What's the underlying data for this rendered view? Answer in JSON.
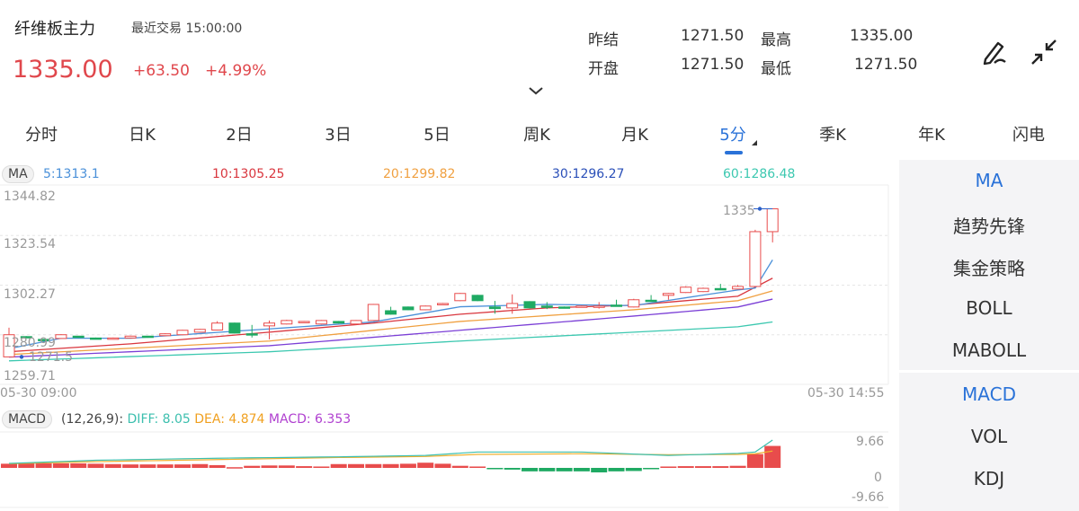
{
  "header": {
    "title": "纤维板主力",
    "last_trade_label": "最近交易",
    "last_trade_time": "15:00:00",
    "price": "1335.00",
    "change": "+63.50",
    "change_pct": "+4.99%"
  },
  "quote": {
    "prev_settle_label": "昨结",
    "prev_settle": "1271.50",
    "high_label": "最高",
    "high": "1335.00",
    "open_label": "开盘",
    "open": "1271.50",
    "low_label": "最低",
    "low": "1271.50"
  },
  "icons": {
    "draw": "pen-draw-icon",
    "collapse": "collapse-arrows-icon",
    "expand": "chevron-down-icon"
  },
  "tabs": [
    {
      "label": "分时"
    },
    {
      "label": "日K"
    },
    {
      "label": "2日"
    },
    {
      "label": "3日"
    },
    {
      "label": "5日"
    },
    {
      "label": "周K"
    },
    {
      "label": "月K"
    },
    {
      "label": "5分",
      "active": true
    },
    {
      "label": "季K"
    },
    {
      "label": "年K"
    },
    {
      "label": "闪电"
    }
  ],
  "indicator_panel": {
    "main": [
      {
        "label": "MA",
        "active": true
      },
      {
        "label": "趋势先锋"
      },
      {
        "label": "集金策略"
      },
      {
        "label": "BOLL"
      },
      {
        "label": "MABOLL"
      }
    ],
    "sub": [
      {
        "label": "MACD",
        "active": true
      },
      {
        "label": "VOL"
      },
      {
        "label": "KDJ"
      }
    ]
  },
  "colors": {
    "up": "#e84c4c",
    "down": "#1faa63",
    "accent": "#2a72d8",
    "ma5": "#4a90d9",
    "ma10": "#d9363e",
    "ma20": "#f0a040",
    "ma30": "#7b3fd6",
    "ma60": "#3cc8b0",
    "diff": "#3cbfae",
    "dea": "#f0b030",
    "macd": "#b040d0"
  },
  "chart_data": [
    {
      "type": "candlestick",
      "indicator_chip": "MA",
      "legend": [
        "5:1313.1",
        "10:1305.25",
        "20:1299.82",
        "30:1296.27",
        "60:1286.48"
      ],
      "y_ticks": [
        "1344.82",
        "1323.54",
        "1302.27",
        "1280.99",
        "1259.71"
      ],
      "ylim": [
        1259.71,
        1344.82
      ],
      "x_labels": [
        "05-30 09:00",
        "05-30 14:55"
      ],
      "high_marker": "1335",
      "low_marker": "1271.5",
      "candles": [
        [
          1271.5,
          1281,
          1284,
          1271.5
        ],
        [
          1280.2,
          1279.8,
          1280.4,
          1279.6
        ],
        [
          1279,
          1278.6,
          1279.2,
          1278.4
        ],
        [
          1279.4,
          1281,
          1281.2,
          1279.2
        ],
        [
          1280.4,
          1279.9,
          1280.5,
          1279.7
        ],
        [
          1279.6,
          1279.3,
          1279.8,
          1279.1
        ],
        [
          1279.4,
          1279.6,
          1279.8,
          1279.2
        ],
        [
          1279.6,
          1280.4,
          1280.6,
          1279.4
        ],
        [
          1280.4,
          1279.9,
          1280.5,
          1279.7
        ],
        [
          1280.6,
          1281.4,
          1281.6,
          1280.4
        ],
        [
          1281,
          1282.9,
          1283.1,
          1280.8
        ],
        [
          1282.1,
          1283.3,
          1283.5,
          1282
        ],
        [
          1283,
          1286,
          1286.8,
          1282.8
        ],
        [
          1286,
          1281.7,
          1286.2,
          1281.5
        ],
        [
          1281.4,
          1281,
          1285.2,
          1279.8
        ],
        [
          1284.8,
          1286,
          1287.1,
          1279
        ],
        [
          1285.6,
          1287.1,
          1287.4,
          1285.4
        ],
        [
          1286.5,
          1286.7,
          1286.9,
          1286.3
        ],
        [
          1285.6,
          1287.1,
          1287.3,
          1285.4
        ],
        [
          1286.7,
          1286,
          1286.9,
          1285.8
        ],
        [
          1285.6,
          1287.1,
          1287.3,
          1285.4
        ],
        [
          1287.1,
          1294,
          1294.2,
          1286.9
        ],
        [
          1291.3,
          1289.8,
          1293,
          1289.6
        ],
        [
          1292.9,
          1291.7,
          1293.1,
          1291.5
        ],
        [
          1291.7,
          1293.3,
          1293.5,
          1291.5
        ],
        [
          1294,
          1294.4,
          1294.6,
          1293.8
        ],
        [
          1295.6,
          1298.7,
          1298.9,
          1295.4
        ],
        [
          1297.9,
          1295.6,
          1298.1,
          1295.4
        ],
        [
          1292.9,
          1292.2,
          1295.5,
          1290
        ],
        [
          1292.5,
          1294.4,
          1298.3,
          1290
        ],
        [
          1295.2,
          1292.5,
          1295.4,
          1292.3
        ],
        [
          1293.3,
          1292.9,
          1295,
          1292
        ],
        [
          1292.9,
          1292.5,
          1293.1,
          1292.3
        ],
        [
          1292.9,
          1293.3,
          1293.5,
          1292.7
        ],
        [
          1293,
          1293.3,
          1295,
          1292.2
        ],
        [
          1293.7,
          1293.3,
          1296,
          1293.1
        ],
        [
          1292.9,
          1296,
          1296.4,
          1292.7
        ],
        [
          1295.8,
          1295.6,
          1298,
          1295.4
        ],
        [
          1297.9,
          1298.7,
          1298.9,
          1296
        ],
        [
          1299.1,
          1301.4,
          1301.8,
          1298.9
        ],
        [
          1299.5,
          1300.9,
          1301.2,
          1299.3
        ],
        [
          1300.8,
          1300.6,
          1302.8,
          1300.2
        ],
        [
          1300.6,
          1301.7,
          1302.4,
          1300.4
        ],
        [
          1301.7,
          1325.2,
          1326,
          1301.5
        ],
        [
          1325.2,
          1335,
          1335,
          1320.6
        ]
      ],
      "ma": {
        "ma5": [
          [
            0,
            1275
          ],
          [
            3,
            1279.5
          ],
          [
            7,
            1279.5
          ],
          [
            12,
            1282
          ],
          [
            21,
            1286.5
          ],
          [
            26,
            1293
          ],
          [
            31,
            1294
          ],
          [
            36,
            1293.5
          ],
          [
            42,
            1300.2
          ],
          [
            43,
            1301
          ],
          [
            44,
            1313.1
          ]
        ],
        "ma10": [
          [
            0,
            1273.7
          ],
          [
            7,
            1277.1
          ],
          [
            15,
            1282.1
          ],
          [
            21,
            1286
          ],
          [
            26,
            1289.8
          ],
          [
            31,
            1292.5
          ],
          [
            36,
            1293.7
          ],
          [
            42,
            1297.5
          ],
          [
            44,
            1305.25
          ]
        ],
        "ma20": [
          [
            0,
            1272.5
          ],
          [
            15,
            1278.3
          ],
          [
            26,
            1286.7
          ],
          [
            36,
            1291.7
          ],
          [
            42,
            1295.6
          ],
          [
            44,
            1299.82
          ]
        ],
        "ma30": [
          [
            0,
            1271.4
          ],
          [
            15,
            1276.3
          ],
          [
            26,
            1282.9
          ],
          [
            36,
            1289
          ],
          [
            42,
            1292.9
          ],
          [
            44,
            1296.27
          ]
        ],
        "ma60": [
          [
            0,
            1269.8
          ],
          [
            15,
            1273.7
          ],
          [
            26,
            1278.3
          ],
          [
            36,
            1282.1
          ],
          [
            42,
            1284.4
          ],
          [
            44,
            1286.48
          ]
        ]
      }
    },
    {
      "type": "macd",
      "indicator_chip": "MACD",
      "params": "(12,26,9):",
      "diff_label": "DIFF: 8.05",
      "dea_label": "DEA: 4.874",
      "macd_label": "MACD: 6.353",
      "y_ticks": [
        "9.66",
        "0",
        "-9.66"
      ],
      "ylim": [
        -9.66,
        9.66
      ],
      "macd": [
        1.2,
        1.3,
        1.3,
        1.3,
        1.3,
        1.2,
        1.1,
        1,
        1,
        1,
        1,
        1.1,
        0.8,
        0.2,
        0.6,
        0.7,
        0.7,
        0.5,
        0.4,
        1.1,
        1.1,
        1.1,
        1.1,
        1.2,
        1.5,
        1.2,
        0.6,
        0.4,
        -0.1,
        -0.5,
        -1,
        -1,
        -1,
        -1,
        -1.3,
        -1,
        -0.9,
        -0.3,
        0.4,
        0.5,
        0.5,
        0.5,
        0.6,
        4,
        6.353
      ],
      "diff": [
        [
          0,
          1.3
        ],
        [
          5,
          2.2
        ],
        [
          12,
          2.8
        ],
        [
          19,
          3.2
        ],
        [
          24,
          3.6
        ],
        [
          27,
          4.6
        ],
        [
          33,
          4.6
        ],
        [
          38,
          3.6
        ],
        [
          42,
          4.2
        ],
        [
          43,
          4.6
        ],
        [
          44,
          8.05
        ]
      ],
      "dea": [
        [
          0,
          1.2
        ],
        [
          5,
          1.8
        ],
        [
          12,
          2.4
        ],
        [
          19,
          3
        ],
        [
          24,
          3.3
        ],
        [
          27,
          3.9
        ],
        [
          33,
          4.1
        ],
        [
          38,
          3.8
        ],
        [
          42,
          3.9
        ],
        [
          43,
          4.1
        ],
        [
          44,
          4.874
        ]
      ]
    }
  ]
}
